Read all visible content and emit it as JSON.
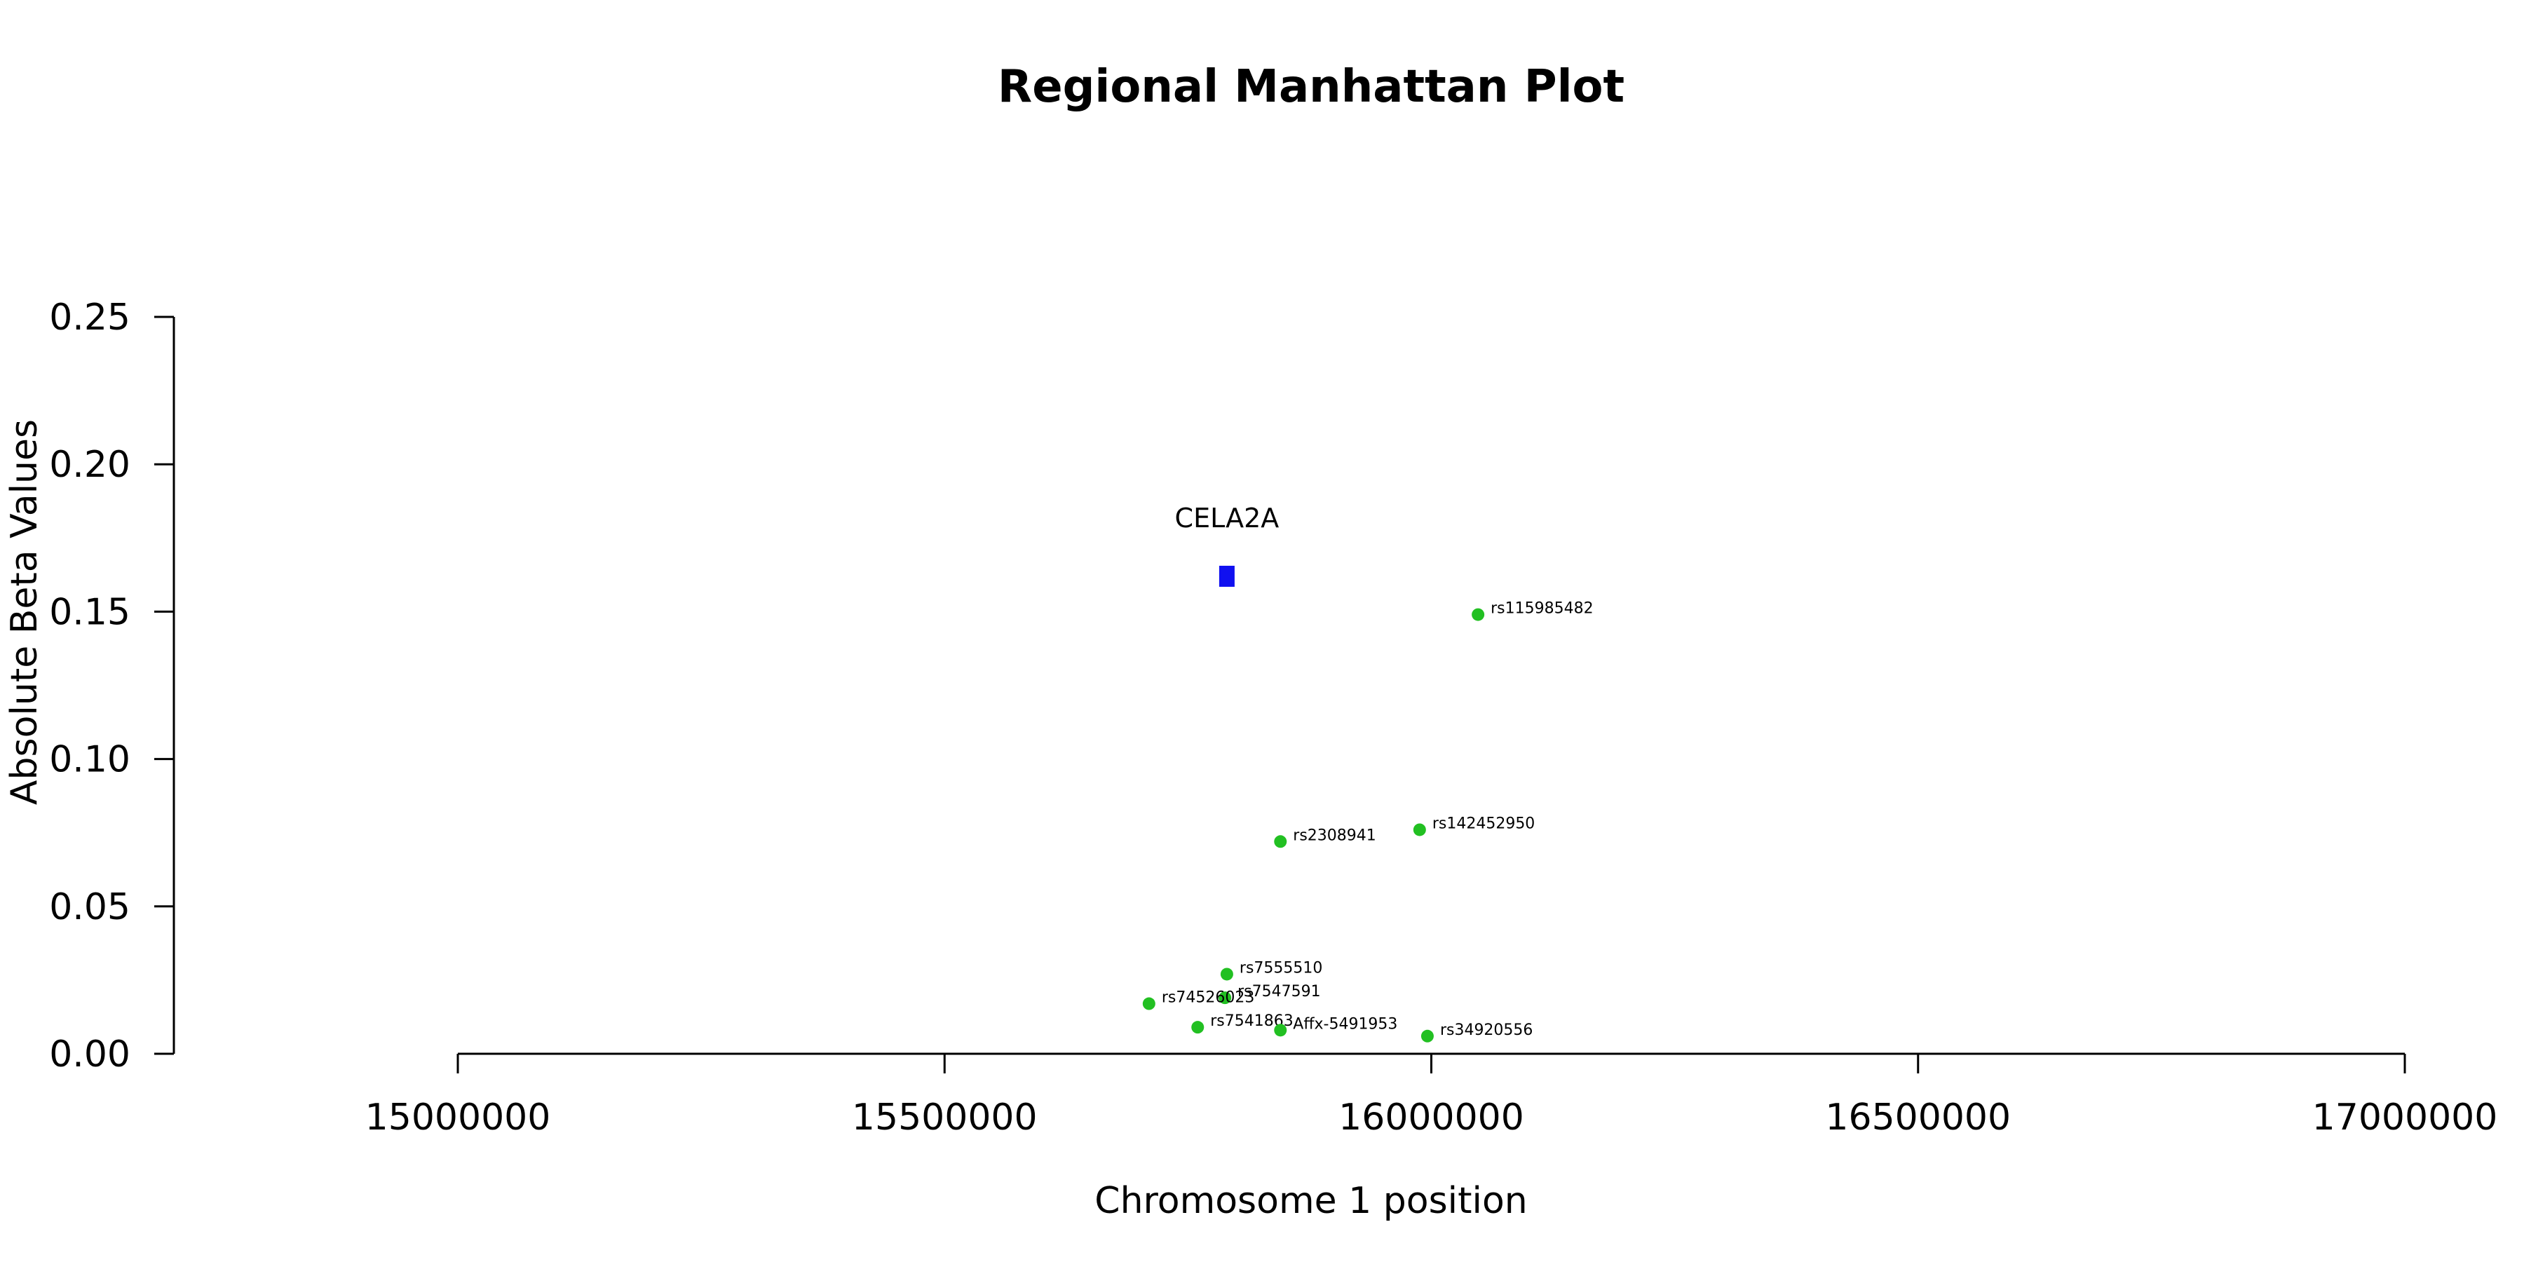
{
  "chart_data": {
    "type": "scatter",
    "title": "Regional Manhattan Plot",
    "xlabel": "Chromosome 1 position",
    "ylabel": "Absolute Beta Values",
    "xlim": [
      15000000,
      17000000
    ],
    "ylim": [
      0,
      0.25
    ],
    "x_ticks": [
      15000000,
      15500000,
      16000000,
      16500000,
      17000000
    ],
    "x_tick_labels": [
      "15000000",
      "15500000",
      "16000000",
      "16500000",
      "17000000"
    ],
    "y_ticks": [
      0,
      0.05,
      0.1,
      0.15,
      0.2,
      0.25
    ],
    "y_tick_labels": [
      "0.00",
      "0.05",
      "0.10",
      "0.15",
      "0.20",
      "0.25"
    ],
    "grid": false,
    "colors": {
      "snp": "#22C022",
      "gene": "#1010F0"
    },
    "gene": {
      "name": "CELA2A",
      "x": 15790000,
      "y": 0.162
    },
    "series": [
      {
        "points": [
          {
            "label": "rs115985482",
            "x": 16048000,
            "y": 0.149
          },
          {
            "label": "rs142452950",
            "x": 15988000,
            "y": 0.076
          },
          {
            "label": "rs2308941",
            "x": 15845000,
            "y": 0.072
          },
          {
            "label": "rs7555510",
            "x": 15790000,
            "y": 0.027
          },
          {
            "label": "rs7547591",
            "x": 15788000,
            "y": 0.019
          },
          {
            "label": "rs74526023",
            "x": 15710000,
            "y": 0.017
          },
          {
            "label": "rs7541863",
            "x": 15760000,
            "y": 0.009
          },
          {
            "label": "Affx-5491953",
            "x": 15845000,
            "y": 0.008
          },
          {
            "label": "rs34920556",
            "x": 15996000,
            "y": 0.006
          }
        ]
      }
    ]
  }
}
